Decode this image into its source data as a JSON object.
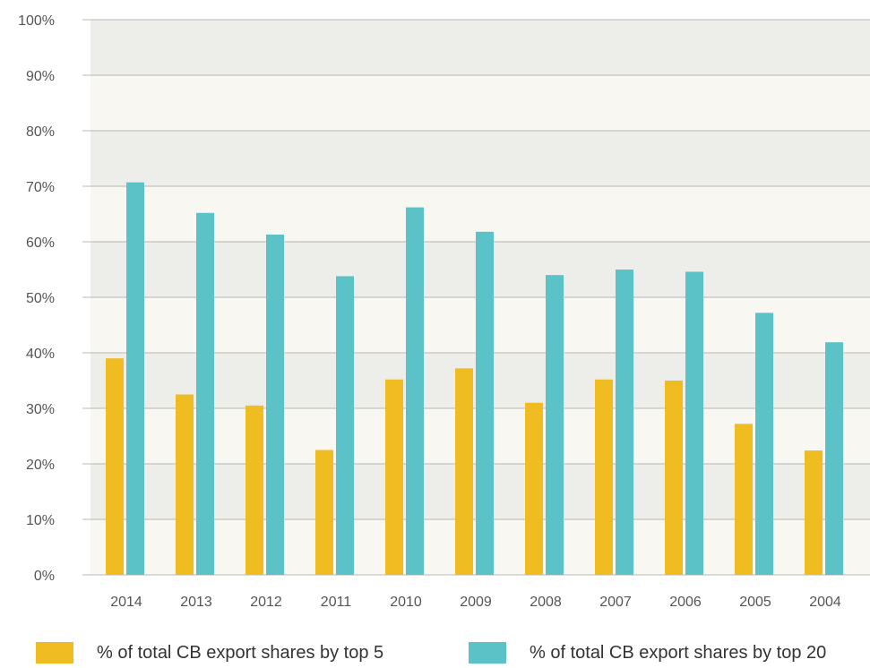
{
  "chart_data": {
    "type": "bar",
    "title": "",
    "xlabel": "",
    "ylabel": "",
    "categories": [
      "2014",
      "2013",
      "2012",
      "2011",
      "2010",
      "2009",
      "2008",
      "2007",
      "2006",
      "2005",
      "2004"
    ],
    "series": [
      {
        "name": "% of total CB export shares by top 5",
        "color": "#EFBC22",
        "values": [
          39,
          32.5,
          30.5,
          22.5,
          35.2,
          37.2,
          31,
          35.2,
          35,
          27.2,
          22.4
        ]
      },
      {
        "name": "% of total CB export shares by top 20",
        "color": "#5BC2C8",
        "values": [
          70.7,
          65.2,
          61.3,
          53.8,
          66.2,
          61.8,
          54,
          55,
          54.6,
          47.2,
          41.9
        ]
      }
    ],
    "ylim": [
      0,
      100
    ],
    "yticks": [
      "0%",
      "10%",
      "20%",
      "30%",
      "40%",
      "50%",
      "60%",
      "70%",
      "80%",
      "90%",
      "100%"
    ],
    "grid": true,
    "band_colors": [
      "#F8F7F2",
      "#EDEDE9"
    ],
    "legend_position": "bottom"
  },
  "legend": {
    "items": [
      {
        "label": "% of total CB export shares by top 5",
        "color": "#EFBC22"
      },
      {
        "label": "% of total CB export shares by top 20",
        "color": "#5BC2C8"
      }
    ]
  }
}
